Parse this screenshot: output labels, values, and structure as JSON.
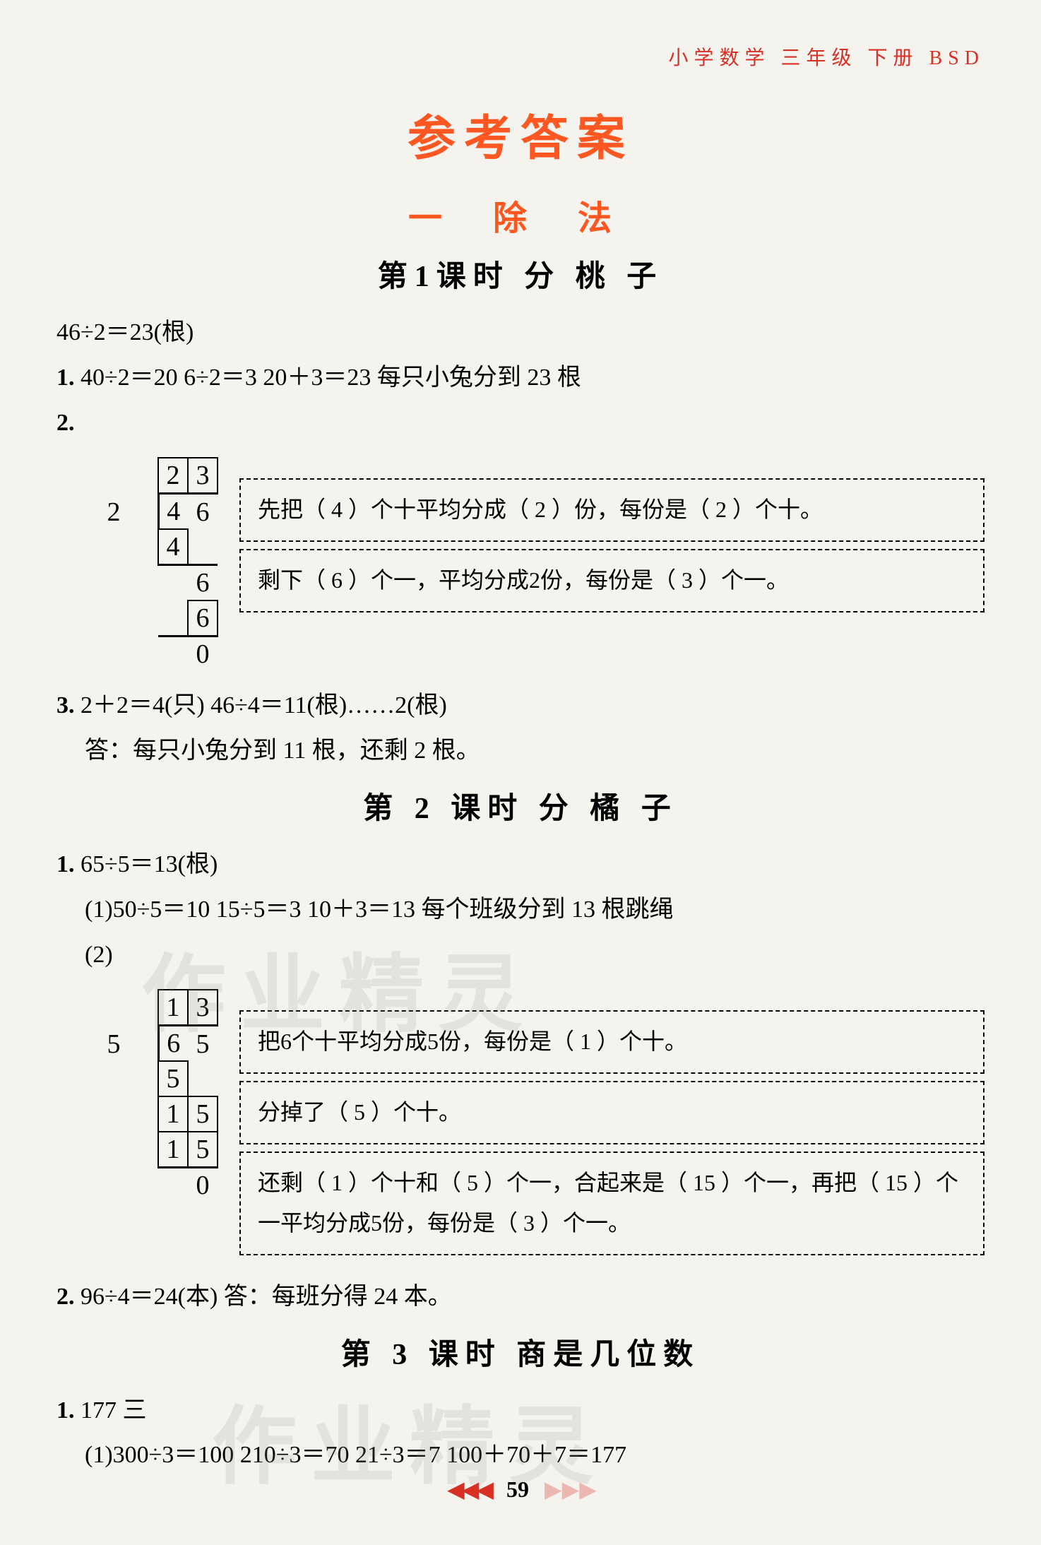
{
  "header": {
    "subject": "小学数学",
    "grade": "三年级",
    "volume": "下册",
    "edition": "BSD"
  },
  "main_title": "参考答案",
  "chapter": "一  除  法",
  "lessons": [
    {
      "title": "第1课时  分  桃  子",
      "intro_line": "46÷2＝23(根)",
      "items": [
        {
          "num": "1.",
          "text": "40÷2＝20   6÷2＝3   20＋3＝23   每只小兔分到 23 根"
        },
        {
          "num": "2.",
          "division": {
            "divisor": "2",
            "dividend": [
              "4",
              "6"
            ],
            "quotient": [
              "2",
              "3"
            ],
            "step1": [
              "4",
              ""
            ],
            "step2_bring": [
              "",
              "6"
            ],
            "step2_prod": [
              "",
              "6"
            ],
            "remainder": [
              "",
              "0"
            ]
          },
          "boxes": [
            "先把（ 4 ）个十平均分成（ 2 ）份，每份是（ 2 ）个十。",
            "剩下（ 6 ）个一，平均分成2份，每份是（ 3 ）个一。"
          ]
        },
        {
          "num": "3.",
          "lines": [
            "2＋2＝4(只)   46÷4＝11(根)……2(根)",
            "答：每只小兔分到 11 根，还剩 2 根。"
          ]
        }
      ]
    },
    {
      "title": "第 2 课时  分  橘  子",
      "items": [
        {
          "num": "1.",
          "lines": [
            "65÷5＝13(根)",
            "(1)50÷5＝10   15÷5＝3   10＋3＝13   每个班级分到 13 根跳绳"
          ],
          "sub2_label": "(2)",
          "division": {
            "divisor": "5",
            "dividend": [
              "6",
              "5"
            ],
            "quotient": [
              "1",
              "3"
            ],
            "step1": [
              "5",
              ""
            ],
            "step2_bring": [
              "1",
              "5"
            ],
            "step2_prod": [
              "1",
              "5"
            ],
            "remainder": [
              "",
              "0"
            ]
          },
          "boxes": [
            "把6个十平均分成5份，每份是（ 1 ）个十。",
            "分掉了（ 5 ）个十。",
            "还剩（ 1 ）个十和（ 5 ）个一，合起来是（ 15 ）个一，再把（ 15 ）个一平均分成5份，每份是（ 3 ）个一。"
          ]
        },
        {
          "num": "2.",
          "text": "96÷4＝24(本)   答：每班分得 24 本。"
        }
      ]
    },
    {
      "title": "第 3 课时   商是几位数",
      "items": [
        {
          "num": "1.",
          "lines": [
            "177   三",
            "(1)300÷3＝100   210÷3＝70   21÷3＝7   100＋70＋7＝177"
          ]
        }
      ]
    }
  ],
  "watermark_text": "作业精灵",
  "footer": {
    "left_marks": "◀◀◀",
    "page_number": "59",
    "right_marks": "▶ ▶ ▶"
  }
}
